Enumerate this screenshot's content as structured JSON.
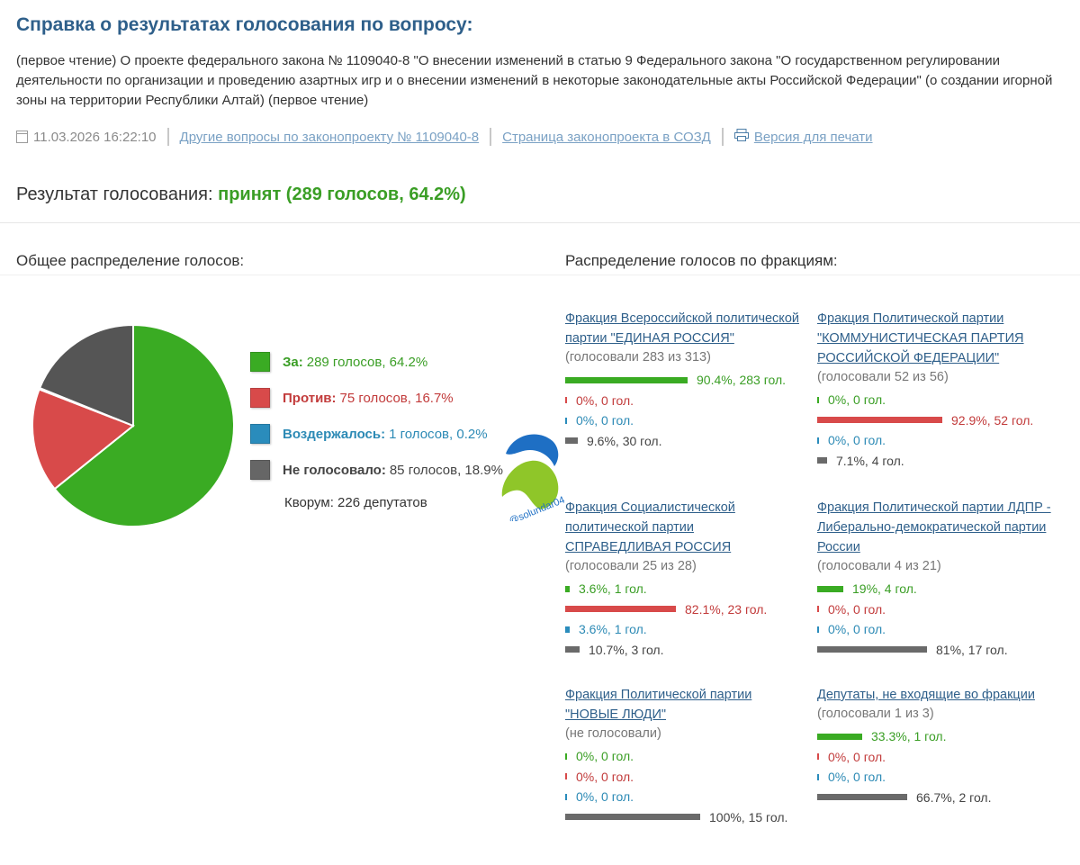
{
  "title": "Справка о результатах голосования по вопросу:",
  "description": "(первое чтение) О проекте федерального закона № 1109040-8 \"О внесении изменений в статью 9 Федерального закона \"О государственном регулировании деятельности по организации и проведению азартных игр и о внесении изменений в некоторые законодательные акты Российской Федерации\" (о создании игорной зоны на территории Республики Алтай) (первое чтение)",
  "meta": {
    "datetime": "11.03.2026 16:22:10",
    "link_other": "Другие вопросы по законопроекту № 1109040-8",
    "link_sozd": "Страница законопроекта в СОЗД",
    "link_print": "Версия для печати",
    "icons": [
      "calendar-icon",
      "printer-icon"
    ]
  },
  "result": {
    "label": "Результат голосования:",
    "value": "принят (289 голосов, 64.2%)"
  },
  "sections": {
    "overall": "Общее распределение голосов:",
    "factions": "Распределение голосов по фракциям:"
  },
  "colors": {
    "for": "#3aab23",
    "against": "#d84a4a",
    "abstain": "#2a8cbc",
    "not_voted": "#555555",
    "link": "#2e5f8a"
  },
  "chart_data": {
    "type": "pie",
    "labels": [
      "За",
      "Против",
      "Воздержалось",
      "Не голосовало"
    ],
    "values": [
      289,
      75,
      1,
      85
    ],
    "percents": [
      64.2,
      16.7,
      0.2,
      18.9
    ]
  },
  "legend": [
    {
      "label": "За:",
      "text": "289 голосов, 64.2%"
    },
    {
      "label": "Против:",
      "text": "75 голосов, 16.7%"
    },
    {
      "label": "Воздержалось:",
      "text": "1 голосов, 0.2%"
    },
    {
      "label": "Не голосовало:",
      "text": "85 голосов, 18.9%"
    }
  ],
  "quorum": "Кворум: 226 депутатов",
  "watermark": "@solundar04",
  "factions": [
    {
      "name": "Фракция Всероссийской политической партии \"ЕДИНАЯ РОССИЯ\"",
      "voted": "(голосовали 283 из 313)",
      "rows": [
        {
          "pct": 90.4,
          "text": "90.4%, 283 гол."
        },
        {
          "pct": 0,
          "text": "0%, 0 гол."
        },
        {
          "pct": 0,
          "text": "0%, 0 гол."
        },
        {
          "pct": 9.6,
          "text": "9.6%, 30 гол."
        }
      ]
    },
    {
      "name": "Фракция Политической партии \"КОММУНИСТИЧЕСКАЯ ПАРТИЯ РОССИЙСКОЙ ФЕДЕРАЦИИ\"",
      "voted": "(голосовали 52 из 56)",
      "rows": [
        {
          "pct": 0,
          "text": "0%, 0 гол."
        },
        {
          "pct": 92.9,
          "text": "92.9%, 52 гол."
        },
        {
          "pct": 0,
          "text": "0%, 0 гол."
        },
        {
          "pct": 7.1,
          "text": "7.1%, 4 гол."
        }
      ]
    },
    {
      "name": "Фракция Социалистической политической партии СПРАВЕДЛИВАЯ РОССИЯ",
      "voted": "(голосовали 25 из 28)",
      "rows": [
        {
          "pct": 3.6,
          "text": "3.6%, 1 гол."
        },
        {
          "pct": 82.1,
          "text": "82.1%, 23 гол."
        },
        {
          "pct": 3.6,
          "text": "3.6%, 1 гол."
        },
        {
          "pct": 10.7,
          "text": "10.7%, 3 гол."
        }
      ]
    },
    {
      "name": "Фракция Политической партии ЛДПР - Либерально-демократической партии России",
      "voted": "(голосовали 4 из 21)",
      "rows": [
        {
          "pct": 19,
          "text": "19%, 4 гол."
        },
        {
          "pct": 0,
          "text": "0%, 0 гол."
        },
        {
          "pct": 0,
          "text": "0%, 0 гол."
        },
        {
          "pct": 81,
          "text": "81%, 17 гол."
        }
      ]
    },
    {
      "name": "Фракция Политической партии \"НОВЫЕ ЛЮДИ\"",
      "voted": "(не голосовали)",
      "rows": [
        {
          "pct": 0,
          "text": "0%, 0 гол."
        },
        {
          "pct": 0,
          "text": "0%, 0 гол."
        },
        {
          "pct": 0,
          "text": "0%, 0 гол."
        },
        {
          "pct": 100,
          "text": "100%, 15 гол."
        }
      ]
    },
    {
      "name": "Депутаты, не входящие во фракции",
      "voted": "(голосовали 1 из 3)",
      "rows": [
        {
          "pct": 33.3,
          "text": "33.3%, 1 гол."
        },
        {
          "pct": 0,
          "text": "0%, 0 гол."
        },
        {
          "pct": 0,
          "text": "0%, 0 гол."
        },
        {
          "pct": 66.7,
          "text": "66.7%, 2 гол."
        }
      ]
    }
  ]
}
